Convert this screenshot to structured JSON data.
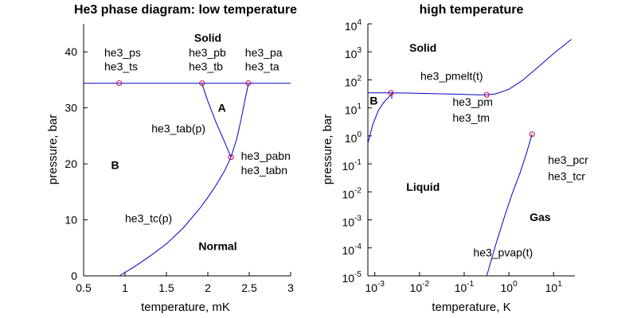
{
  "colors": {
    "curve": "#0000c8",
    "marker": "#d0003a",
    "axis": "#000000"
  },
  "chart_data": [
    {
      "type": "line",
      "title": "He3 phase diagram: low temperature",
      "xlabel": "temperature, mK",
      "ylabel": "pressure, bar",
      "xlim": [
        0.5,
        3
      ],
      "ylim": [
        0,
        45
      ],
      "xscale": "linear",
      "yscale": "linear",
      "grid": false,
      "xticks": [
        0.5,
        1,
        1.5,
        2,
        2.5,
        3
      ],
      "xtick_labels": [
        "0.5",
        "1",
        "1.5",
        "2",
        "2.5",
        "3"
      ],
      "yticks": [
        0,
        10,
        20,
        30,
        40
      ],
      "ytick_labels": [
        "0",
        "10",
        "20",
        "30",
        "40"
      ],
      "series": [
        {
          "x": [
            0.5,
            3.0
          ],
          "y": [
            34.4,
            34.4
          ]
        },
        {
          "x": [
            0.93,
            1.1,
            1.3,
            1.5,
            1.7,
            1.9,
            2.0,
            2.1,
            2.2,
            2.28
          ],
          "y": [
            0,
            1.5,
            3.5,
            5.7,
            8.5,
            12.0,
            14.0,
            16.2,
            18.7,
            21.2
          ]
        },
        {
          "x": [
            1.93,
            2.0,
            2.1,
            2.2,
            2.28
          ],
          "y": [
            34.3,
            31.2,
            27.4,
            24.0,
            21.2
          ]
        },
        {
          "x": [
            2.28,
            2.35,
            2.4,
            2.45,
            2.49
          ],
          "y": [
            21.2,
            24.5,
            27.8,
            31.5,
            34.3
          ]
        }
      ],
      "points": [
        {
          "x": 0.93,
          "y": 34.4
        },
        {
          "x": 1.93,
          "y": 34.4
        },
        {
          "x": 2.49,
          "y": 34.4
        },
        {
          "x": 2.28,
          "y": 21.2
        }
      ],
      "annotations": [
        {
          "text": "he3_ps",
          "x": 0.75,
          "y": 39.2
        },
        {
          "text": "he3_ts",
          "x": 0.75,
          "y": 36.7
        },
        {
          "text": "he3_pb",
          "x": 1.77,
          "y": 39.2
        },
        {
          "text": "he3_tb",
          "x": 1.77,
          "y": 36.7
        },
        {
          "text": "he3_pa",
          "x": 2.45,
          "y": 39.2
        },
        {
          "text": "he3_ta",
          "x": 2.45,
          "y": 36.7
        },
        {
          "text": "he3_tab(p)",
          "x": 1.32,
          "y": 25.6
        },
        {
          "text": "he3_pabn",
          "x": 2.4,
          "y": 20.7
        },
        {
          "text": "he3_tabn",
          "x": 2.4,
          "y": 18.2
        },
        {
          "text": "he3_tc(p)",
          "x": 1.0,
          "y": 9.6
        }
      ],
      "regions": [
        {
          "text": "Solid",
          "x": 2.0,
          "y": 41.8
        },
        {
          "text": "A",
          "x": 2.17,
          "y": 29.3
        },
        {
          "text": "B",
          "x": 0.88,
          "y": 19.1
        },
        {
          "text": "Normal",
          "x": 2.12,
          "y": 4.6
        }
      ]
    },
    {
      "type": "line",
      "title": "high temperature",
      "xlabel": "temperature, K",
      "ylabel": "pressure, bar",
      "xlim": [
        0.0007,
        30
      ],
      "ylim": [
        1e-05,
        10000
      ],
      "xscale": "log",
      "yscale": "log",
      "grid": false,
      "xticks": [
        0.001,
        0.01,
        0.1,
        1,
        10
      ],
      "xtick_labels": [
        {
          "base": "10",
          "exp": "-3"
        },
        {
          "base": "10",
          "exp": "-2"
        },
        {
          "base": "10",
          "exp": "-1"
        },
        {
          "base": "10",
          "exp": "0"
        },
        {
          "base": "10",
          "exp": "1"
        }
      ],
      "yticks": [
        1e-05,
        0.0001,
        0.001,
        0.01,
        0.1,
        1,
        10,
        100,
        1000,
        10000
      ],
      "ytick_labels": [
        {
          "base": "10",
          "exp": "-5"
        },
        {
          "base": "10",
          "exp": "-4"
        },
        {
          "base": "10",
          "exp": "-3"
        },
        {
          "base": "10",
          "exp": "-2"
        },
        {
          "base": "10",
          "exp": "-1"
        },
        {
          "base": "10",
          "exp": "0"
        },
        {
          "base": "10",
          "exp": "1"
        },
        {
          "base": "10",
          "exp": "2"
        },
        {
          "base": "10",
          "exp": "3"
        },
        {
          "base": "10",
          "exp": "4"
        }
      ],
      "series": [
        {
          "x": [
            0.0007,
            0.001,
            0.002,
            0.005,
            0.01,
            0.03,
            0.1,
            0.2,
            0.32,
            0.5,
            1,
            2,
            5,
            10,
            25
          ],
          "y": [
            34.4,
            34.5,
            34.4,
            33.8,
            33.0,
            31.8,
            30.2,
            29.4,
            29.3,
            31.5,
            46,
            95,
            330,
            870,
            2800
          ]
        },
        {
          "x": [
            0.0007,
            0.0009,
            0.0012,
            0.0016,
            0.0021,
            0.0025
          ],
          "y": [
            0.55,
            2.5,
            8.0,
            16.0,
            25.0,
            34.0
          ]
        },
        {
          "x": [
            0.32,
            0.5,
            0.8,
            1.2,
            1.8,
            2.5,
            3.3
          ],
          "y": [
            1e-05,
            0.00012,
            0.0013,
            0.009,
            0.05,
            0.25,
            1.15
          ]
        },
        {
          "x": [
            0.0024,
            0.0024
          ],
          "y": [
            21,
            34.4
          ]
        }
      ],
      "points": [
        {
          "x": 0.0023,
          "y": 34.4
        },
        {
          "x": 0.32,
          "y": 29.3
        },
        {
          "x": 3.3,
          "y": 1.15
        }
      ],
      "annotations": [
        {
          "text": "he3_pmelt(t)",
          "x": 0.0105,
          "y": 100
        },
        {
          "text": "he3_pm",
          "x": 0.055,
          "y": 12
        },
        {
          "text": "he3_tm",
          "x": 0.055,
          "y": 3.2
        },
        {
          "text": "he3_pcr",
          "x": 7.5,
          "y": 0.1
        },
        {
          "text": "he3_tcr",
          "x": 7.5,
          "y": 0.026
        },
        {
          "text": "he3_pvap(t)",
          "x": 0.16,
          "y": 5e-05
        }
      ],
      "regions": [
        {
          "text": "Solid",
          "x": 0.012,
          "y": 1000
        },
        {
          "text": "B",
          "x": 0.00095,
          "y": 13
        },
        {
          "text": "Liquid",
          "x": 0.012,
          "y": 0.011
        },
        {
          "text": "Gas",
          "x": 5.0,
          "y": 0.0009
        }
      ]
    }
  ]
}
